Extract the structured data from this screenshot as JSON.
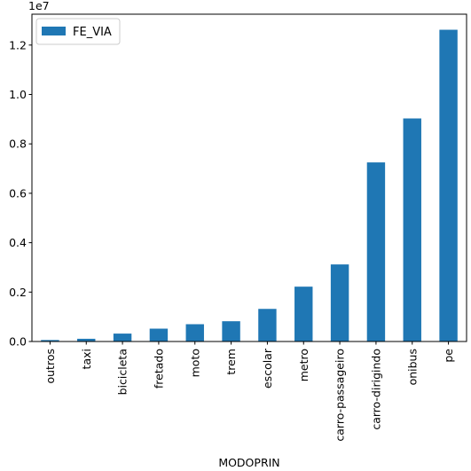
{
  "chart_data": {
    "type": "bar",
    "categories": [
      "outros",
      "taxi",
      "bicicleta",
      "fretado",
      "moto",
      "trem",
      "escolar",
      "metro",
      "carro-passageiro",
      "carro-dirigindo",
      "onibus",
      "pe"
    ],
    "series": [
      {
        "name": "FE_VIA",
        "color": "#1f77b4",
        "values": [
          60000,
          110000,
          320000,
          520000,
          700000,
          820000,
          1320000,
          2220000,
          3120000,
          7250000,
          9030000,
          12620000
        ]
      }
    ],
    "xlabel": "MODOPRIN",
    "ylabel": "",
    "ylim": [
      0,
      13250000
    ],
    "yticks": [
      0,
      2000000,
      4000000,
      6000000,
      8000000,
      10000000,
      12000000
    ],
    "ytick_labels": [
      "0.0",
      "0.2",
      "0.4",
      "0.6",
      "0.8",
      "1.0",
      "1.2"
    ],
    "y_offset_label": "1e7",
    "legend": "upper-left",
    "grid": false
  }
}
